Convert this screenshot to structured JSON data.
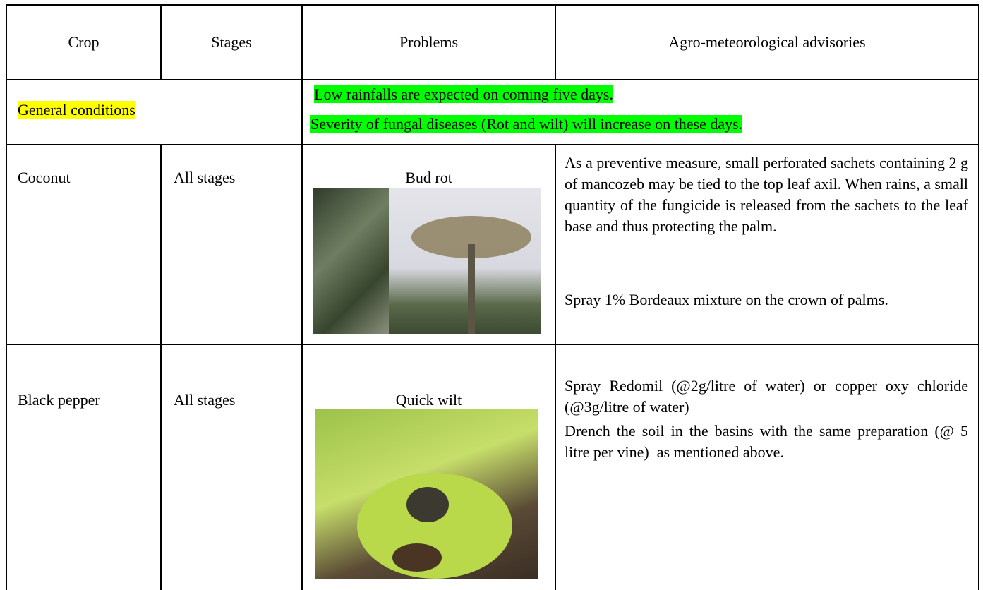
{
  "table": {
    "header": [
      "Crop",
      "Stages",
      "Problems",
      "Agro-meteorological advisories"
    ],
    "general": {
      "label": "General conditions",
      "lines": [
        "Low rainfalls are expected on coming five days.",
        "Severity of fungal diseases (Rot and wilt) will increase on these days."
      ]
    },
    "rows": [
      {
        "crop": "Coconut",
        "stage": "All stages",
        "problem": "Bud rot",
        "advisories": [
          "As a preventive measure, small perforated sachets containing 2 g of mancozeb may be tied to the top leaf axil. When rains, a small quantity of the fungicide is released from the sachets to the leaf base and thus protecting the palm.",
          "Spray 1% Bordeaux mixture on the crown of palms."
        ]
      },
      {
        "crop": "Black pepper",
        "stage": "All stages",
        "problem": "Quick wilt",
        "advisories": [
          "Spray Redomil (@2g/litre of water) or copper oxy chloride (@3g/litre of water)",
          "Drench the soil in the basins with the same preparation (@ 5 litre per vine)  as mentioned above."
        ]
      }
    ]
  }
}
